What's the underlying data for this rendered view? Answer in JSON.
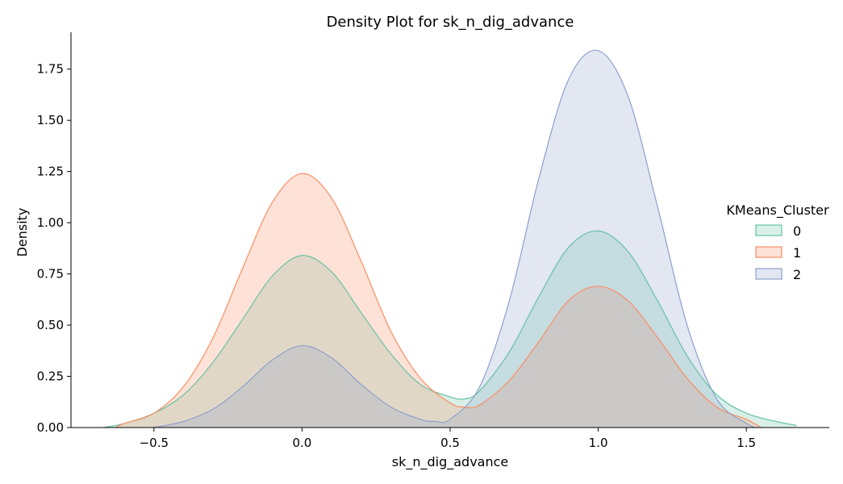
{
  "chart_data": {
    "type": "area",
    "title": "Density Plot for sk_n_dig_advance",
    "xlabel": "sk_n_dig_advance",
    "ylabel": "Density",
    "xlim": [
      -0.78,
      1.78
    ],
    "ylim": [
      0,
      1.93
    ],
    "xticks": [
      -0.5,
      0.0,
      0.5,
      1.0,
      1.5
    ],
    "xtick_labels": [
      "−0.5",
      "0.0",
      "0.5",
      "1.0",
      "1.5"
    ],
    "yticks": [
      0.0,
      0.25,
      0.5,
      0.75,
      1.0,
      1.25,
      1.5,
      1.75
    ],
    "ytick_labels": [
      "0.00",
      "0.25",
      "0.50",
      "0.75",
      "1.00",
      "1.25",
      "1.50",
      "1.75"
    ],
    "grid": false,
    "legend": {
      "title": "KMeans_Cluster",
      "placement": "center-right"
    },
    "series": [
      {
        "name": "0",
        "color": "#66c2a5",
        "x": [
          -0.67,
          -0.6,
          -0.5,
          -0.4,
          -0.3,
          -0.2,
          -0.1,
          0.0,
          0.1,
          0.2,
          0.3,
          0.4,
          0.5,
          0.55,
          0.6,
          0.7,
          0.8,
          0.9,
          1.0,
          1.1,
          1.2,
          1.3,
          1.4,
          1.5,
          1.6,
          1.67
        ],
        "y": [
          0.0,
          0.02,
          0.07,
          0.16,
          0.32,
          0.53,
          0.74,
          0.84,
          0.76,
          0.56,
          0.36,
          0.21,
          0.15,
          0.14,
          0.18,
          0.37,
          0.64,
          0.88,
          0.96,
          0.86,
          0.62,
          0.35,
          0.16,
          0.07,
          0.03,
          0.01
        ]
      },
      {
        "name": "1",
        "color": "#fc8d62",
        "x": [
          -0.63,
          -0.6,
          -0.5,
          -0.4,
          -0.3,
          -0.2,
          -0.1,
          0.0,
          0.1,
          0.2,
          0.3,
          0.4,
          0.5,
          0.55,
          0.6,
          0.7,
          0.8,
          0.9,
          1.0,
          1.1,
          1.2,
          1.3,
          1.4,
          1.5,
          1.55
        ],
        "y": [
          0.0,
          0.02,
          0.07,
          0.2,
          0.44,
          0.78,
          1.1,
          1.24,
          1.12,
          0.81,
          0.47,
          0.24,
          0.12,
          0.1,
          0.11,
          0.23,
          0.42,
          0.62,
          0.69,
          0.62,
          0.44,
          0.24,
          0.1,
          0.04,
          0.0
        ]
      },
      {
        "name": "2",
        "color": "#8da0cb",
        "x": [
          -0.5,
          -0.4,
          -0.3,
          -0.2,
          -0.1,
          0.0,
          0.1,
          0.2,
          0.3,
          0.4,
          0.45,
          0.5,
          0.6,
          0.7,
          0.8,
          0.9,
          1.0,
          1.1,
          1.2,
          1.3,
          1.4,
          1.5,
          1.53
        ],
        "y": [
          0.0,
          0.03,
          0.09,
          0.2,
          0.33,
          0.4,
          0.34,
          0.21,
          0.1,
          0.04,
          0.03,
          0.04,
          0.2,
          0.62,
          1.22,
          1.7,
          1.84,
          1.62,
          1.08,
          0.5,
          0.14,
          0.02,
          0.0
        ]
      }
    ]
  }
}
